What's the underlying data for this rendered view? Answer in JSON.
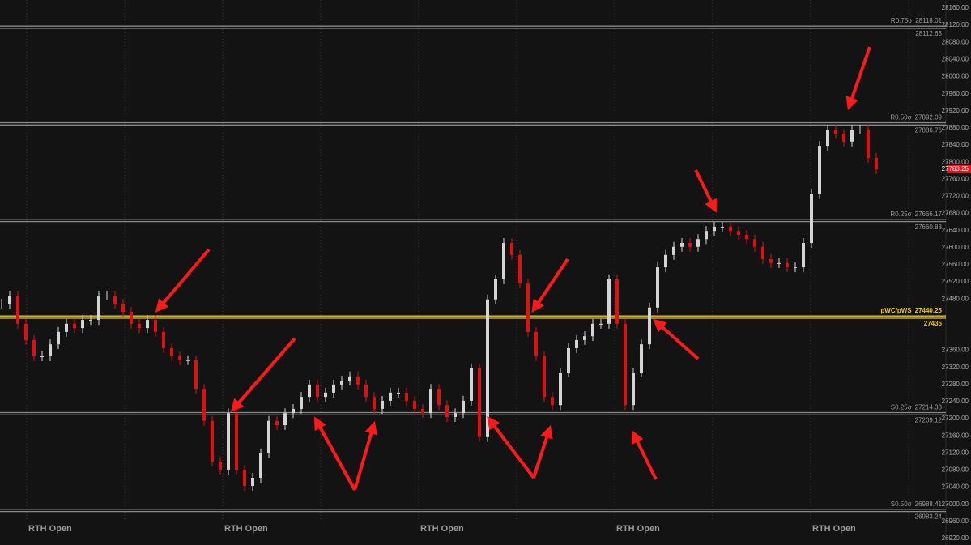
{
  "chart_data": {
    "type": "candlestick",
    "values": [
      27469,
      27488,
      27422,
      27384,
      27346,
      27346,
      27374,
      27403,
      27422,
      27412,
      27431,
      27431,
      27488,
      27488,
      27469,
      27450,
      27422,
      27412,
      27431,
      27403,
      27365,
      27346,
      27337,
      27337,
      27270,
      27195,
      27100,
      27081,
      27213,
      27081,
      27043,
      27062,
      27119,
      27195,
      27185,
      27213,
      27223,
      27251,
      27280,
      27251,
      27261,
      27280,
      27289,
      27299,
      27280,
      27251,
      27223,
      27242,
      27261,
      27261,
      27242,
      27223,
      27213,
      27270,
      27232,
      27204,
      27213,
      27242,
      27318,
      27157,
      27479,
      27526,
      27611,
      27583,
      27516,
      27403,
      27346,
      27251,
      27232,
      27308,
      27365,
      27384,
      27393,
      27422,
      27422,
      27526,
      27422,
      27232,
      27308,
      27374,
      27460,
      27554,
      27583,
      27602,
      27611,
      27602,
      27620,
      27639,
      27649,
      27649,
      27639,
      27630,
      27620,
      27602,
      27573,
      27564,
      27564,
      27554,
      27554,
      27611,
      27725,
      27838,
      27876,
      27866,
      27848,
      27876,
      27876,
      27810,
      27783.25
    ],
    "up_color": "#d4d4d4",
    "down_color": "#e01010",
    "last_price": 27783.25,
    "last_price_color": "#e8151b",
    "sessions": [
      "RTH Open",
      "RTH Open",
      "RTH Open",
      "RTH Open",
      "RTH Open"
    ],
    "levels": [
      {
        "name": "R0.75σ",
        "upper": 28118.01,
        "lower": 28112.63,
        "color": "#8a8a8a"
      },
      {
        "name": "R0.50σ",
        "upper": 27892.09,
        "lower": 27886.76,
        "color": "#8a8a8a"
      },
      {
        "name": "R0.25σ",
        "upper": 27666.17,
        "lower": 27660.88,
        "color": "#8a8a8a"
      },
      {
        "name": "pWC/pWS",
        "upper": 27440.25,
        "lower": 27435.0,
        "color": "#e8c51a"
      },
      {
        "name": "S0.25σ",
        "upper": 27214.33,
        "lower": 27209.12,
        "color": "#8a8a8a"
      },
      {
        "name": "S0.50σ",
        "upper": 26988.41,
        "lower": 26983.24,
        "color": "#8a8a8a"
      }
    ],
    "ylim": [
      26920,
      28160
    ],
    "yticks": [
      {
        "value": 26920,
        "label": "26920.00"
      },
      {
        "value": 26960,
        "label": "26960.00"
      },
      {
        "value": 27000,
        "label": "27000.00"
      },
      {
        "value": 27040,
        "label": "27040.00"
      },
      {
        "value": 27080,
        "label": "27080.00"
      },
      {
        "value": 27120,
        "label": "27120.00"
      },
      {
        "value": 27160,
        "label": "27160.00"
      },
      {
        "value": 27200,
        "label": "27200.00"
      },
      {
        "value": 27240,
        "label": "27240.00"
      },
      {
        "value": 27280,
        "label": "27280.00"
      },
      {
        "value": 27320,
        "label": "27320.00"
      },
      {
        "value": 27360,
        "label": "27360.00"
      },
      {
        "value": 27480,
        "label": "27480.00"
      },
      {
        "value": 27520,
        "label": "27520.00"
      },
      {
        "value": 27560,
        "label": "27560.00"
      },
      {
        "value": 27600,
        "label": "27600.00"
      },
      {
        "value": 27640,
        "label": "27640.00"
      },
      {
        "value": 27680,
        "label": "27680.00"
      },
      {
        "value": 27720,
        "label": "27720.00"
      },
      {
        "value": 27760,
        "label": "27760.00"
      },
      {
        "value": 27800,
        "label": "27800.00"
      },
      {
        "value": 27840,
        "label": "27840.00"
      },
      {
        "value": 27880,
        "label": "27880.00"
      },
      {
        "value": 27920,
        "label": "27920.00"
      },
      {
        "value": 27960,
        "label": "27960.00"
      },
      {
        "value": 28000,
        "label": "28000.00"
      },
      {
        "value": 28040,
        "label": "28040.00"
      },
      {
        "value": 28080,
        "label": "28080.00"
      },
      {
        "value": 28120,
        "label": "28120.00"
      },
      {
        "value": 28160,
        "label": "28160.00"
      }
    ]
  }
}
